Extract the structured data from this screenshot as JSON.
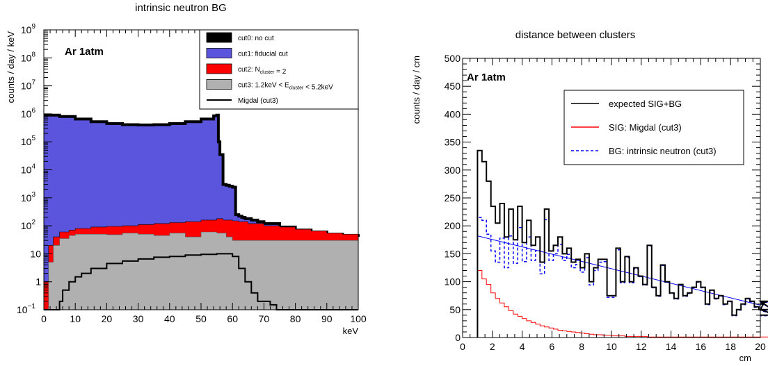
{
  "chart_data": [
    {
      "type": "histogram",
      "title": "intrinsic neutron BG",
      "xlabel": "keV",
      "ylabel": "counts / day / keV",
      "annotation": "Ar 1atm",
      "xlim": [
        0,
        100
      ],
      "ylim": [
        0.1,
        1000000000
      ],
      "yscale": "log",
      "x_ticks": [
        "0",
        "10",
        "20",
        "30",
        "40",
        "50",
        "60",
        "70",
        "80",
        "90",
        "100"
      ],
      "y_ticks": [
        {
          "base": "10",
          "exp": "−1"
        },
        {
          "base": "1",
          "exp": ""
        },
        {
          "base": "10",
          "exp": ""
        },
        {
          "base": "10",
          "exp": "2"
        },
        {
          "base": "10",
          "exp": "3"
        },
        {
          "base": "10",
          "exp": "4"
        },
        {
          "base": "10",
          "exp": "5"
        },
        {
          "base": "10",
          "exp": "6"
        },
        {
          "base": "10",
          "exp": "7"
        },
        {
          "base": "10",
          "exp": "8"
        },
        {
          "base": "10",
          "exp": "9"
        }
      ],
      "legend": {
        "position": "top-right",
        "entries": [
          {
            "kind": "fill",
            "color": "#000000",
            "parts": [
              {
                "t": "cut0: no cut"
              }
            ]
          },
          {
            "kind": "fill",
            "color": "#5a55dc",
            "parts": [
              {
                "t": "cut1: fiducial cut"
              }
            ]
          },
          {
            "kind": "fill",
            "color": "#ff0000",
            "parts": [
              {
                "t": "cut2: N"
              },
              {
                "t": "cluster",
                "sub": true
              },
              {
                "t": " = 2"
              }
            ]
          },
          {
            "kind": "fill",
            "color": "#b0b0b0",
            "parts": [
              {
                "t": "cut3: 1.2keV < E"
              },
              {
                "t": "cluster",
                "sub": true
              },
              {
                "t": " < 5.2keV"
              }
            ]
          },
          {
            "kind": "line",
            "color": "#000000",
            "parts": [
              {
                "t": "Migdal (cut3)"
              }
            ]
          }
        ]
      },
      "series": [
        {
          "name": "cut1: fiducial cut",
          "color": "#5a55dc",
          "x": [
            0,
            5,
            10,
            15,
            20,
            25,
            30,
            35,
            40,
            45,
            50,
            54,
            55,
            55.5,
            56,
            57,
            58,
            59,
            60,
            61,
            62,
            63,
            64,
            66,
            68,
            70,
            75,
            80,
            85,
            90,
            95,
            100
          ],
          "y": [
            900000,
            800000,
            650000,
            520000,
            450000,
            410000,
            400000,
            410000,
            450000,
            520000,
            650000,
            850000,
            900000,
            100000,
            35000,
            3000,
            2800,
            2600,
            2400,
            250,
            220,
            200,
            180,
            160,
            140,
            120,
            90,
            70,
            60,
            50,
            45,
            40
          ]
        },
        {
          "name": "cut2: Ncluster = 2",
          "color": "#ff0000",
          "x": [
            0,
            1,
            1.5,
            3,
            5,
            8,
            10,
            15,
            20,
            25,
            30,
            35,
            40,
            45,
            50,
            55,
            57,
            60,
            62,
            65,
            70,
            75,
            80,
            85,
            90,
            95,
            100
          ],
          "y": [
            1,
            1,
            20,
            40,
            60,
            70,
            80,
            90,
            95,
            100,
            110,
            120,
            130,
            140,
            160,
            180,
            160,
            150,
            140,
            120,
            100,
            90,
            75,
            65,
            55,
            50,
            45
          ]
        },
        {
          "name": "cut3: 1.2keV < Ecluster < 5.2keV",
          "color": "#b0b0b0",
          "x": [
            0,
            1,
            1.5,
            3,
            5,
            8,
            10,
            15,
            20,
            25,
            30,
            35,
            40,
            45,
            50,
            55,
            58,
            60
          ],
          "y": [
            0.1,
            0.1,
            5,
            20,
            35,
            45,
            50,
            50,
            48,
            55,
            50,
            45,
            55,
            40,
            60,
            55,
            40,
            30
          ]
        },
        {
          "name": "Migdal (cut3)",
          "color": "#000000",
          "x": [
            0,
            4.5,
            5,
            6,
            8,
            10,
            12,
            15,
            20,
            25,
            30,
            35,
            40,
            45,
            50,
            55,
            58,
            60,
            62,
            64,
            66,
            68,
            70,
            72,
            74
          ],
          "y": [
            0.1,
            0.1,
            0.2,
            0.5,
            1,
            1.5,
            2,
            3,
            4.5,
            5.5,
            6.5,
            7.5,
            8,
            9,
            9.5,
            10,
            10,
            8,
            3,
            1,
            0.4,
            0.2,
            0.2,
            0.15,
            0.1
          ]
        }
      ]
    },
    {
      "type": "histogram",
      "title": "distance between clusters",
      "xlabel": "cm",
      "ylabel": "counts / day / cm",
      "annotation": "Ar 1atm",
      "xlim": [
        0,
        20
      ],
      "ylim": [
        0,
        500
      ],
      "x_ticks": [
        "0",
        "2",
        "4",
        "6",
        "8",
        "10",
        "12",
        "14",
        "16",
        "18",
        "20"
      ],
      "y_ticks": [
        "0",
        "50",
        "100",
        "150",
        "200",
        "250",
        "300",
        "350",
        "400",
        "450",
        "500"
      ],
      "legend": {
        "position": "top-right",
        "entries": [
          {
            "kind": "line",
            "color": "#000000",
            "parts": [
              {
                "t": "expected SIG+BG"
              }
            ]
          },
          {
            "kind": "line",
            "color": "#ff0000",
            "parts": [
              {
                "t": "SIG: Migdal (cut3)"
              }
            ]
          },
          {
            "kind": "dash",
            "color": "#0000ff",
            "parts": [
              {
                "t": "BG: intrinsic neutron (cut3)"
              }
            ]
          }
        ]
      },
      "bin_edges_start": 1.0,
      "bin_width": 0.3,
      "series": [
        {
          "name": "expected SIG+BG",
          "color": "#000000",
          "values": [
            335,
            315,
            280,
            235,
            205,
            240,
            180,
            230,
            175,
            235,
            170,
            210,
            165,
            180,
            135,
            230,
            155,
            165,
            180,
            150,
            160,
            135,
            140,
            125,
            150,
            100,
            125,
            140,
            140,
            75,
            75,
            160,
            100,
            145,
            100,
            125,
            110,
            95,
            165,
            90,
            75,
            130,
            100,
            80,
            70,
            95,
            75,
            80,
            90,
            100,
            90,
            60,
            85,
            70,
            75,
            60,
            65,
            40,
            50,
            60,
            70,
            65,
            55,
            50,
            60,
            65,
            50,
            40
          ]
        },
        {
          "name": "SIG: Migdal (cut3)",
          "color": "#ff0000",
          "values": [
            120,
            105,
            95,
            80,
            70,
            62,
            55,
            48,
            42,
            38,
            34,
            30,
            27,
            24,
            21,
            19,
            17,
            15,
            13,
            12,
            11,
            10,
            9,
            8,
            7,
            6,
            5,
            5,
            4,
            4,
            3,
            3,
            3,
            2,
            2,
            2,
            2,
            2,
            1,
            1,
            1,
            1,
            1,
            1,
            1,
            1,
            1,
            1,
            1,
            1,
            1,
            1,
            1,
            1,
            1,
            1,
            1,
            1,
            1,
            1,
            1,
            1,
            1,
            1,
            1,
            1,
            1,
            1
          ]
        },
        {
          "name": "BG: intrinsic neutron (cut3)",
          "color": "#0000ff",
          "values": [
            215,
            210,
            185,
            155,
            135,
            178,
            125,
            182,
            133,
            197,
            136,
            180,
            138,
            156,
            114,
            211,
            138,
            150,
            167,
            138,
            149,
            125,
            131,
            117,
            143,
            94,
            120,
            135,
            136,
            72,
            72,
            157,
            98,
            143,
            98,
            123,
            109,
            94,
            164,
            89,
            74,
            129,
            99,
            79,
            69,
            94,
            74,
            79,
            89,
            99,
            89,
            59,
            84,
            69,
            74,
            59,
            64,
            39,
            49,
            59,
            69,
            64,
            54,
            49,
            59,
            64,
            49,
            39
          ]
        },
        {
          "name": "fit",
          "color": "#0000ff",
          "x": [
            1,
            20
          ],
          "y": [
            182,
            58
          ]
        }
      ]
    }
  ]
}
